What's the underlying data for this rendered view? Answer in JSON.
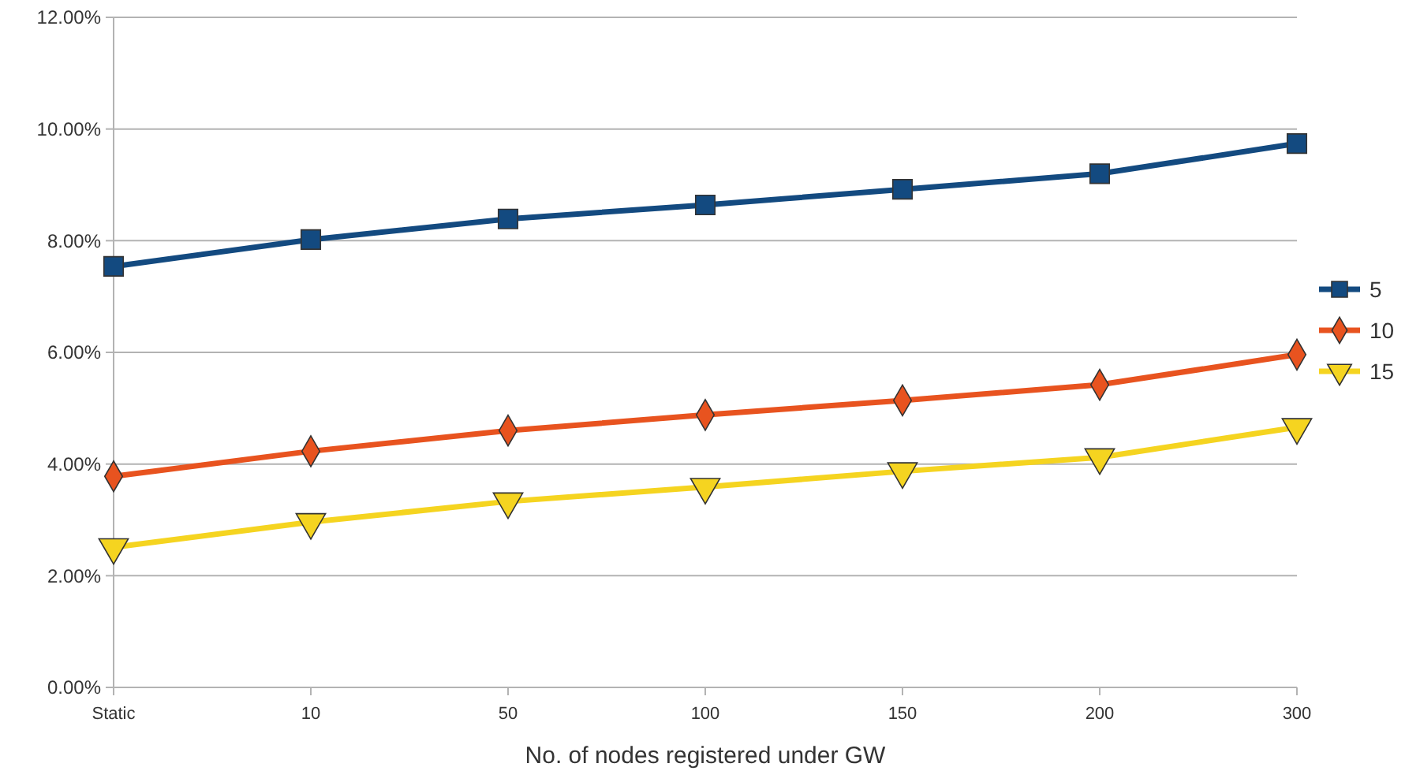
{
  "chart_data": {
    "type": "line",
    "xlabel": "No. of  nodes registered under GW",
    "categories": [
      "Static",
      "10",
      "50",
      "100",
      "150",
      "200",
      "300"
    ],
    "ylim": [
      0,
      12
    ],
    "yticks": [
      {
        "value": 0,
        "label": "0.00%"
      },
      {
        "value": 2,
        "label": "2.00%"
      },
      {
        "value": 4,
        "label": "4.00%"
      },
      {
        "value": 6,
        "label": "6.00%"
      },
      {
        "value": 8,
        "label": "8.00%"
      },
      {
        "value": 10,
        "label": "10.00%"
      },
      {
        "value": 12,
        "label": "12.00%"
      }
    ],
    "grid": "y",
    "legend": "right",
    "line_style": "solid",
    "series": [
      {
        "name": "5",
        "color": "#134a80",
        "marker": "square",
        "values": [
          7.54,
          8.02,
          8.39,
          8.64,
          8.92,
          9.2,
          9.74
        ]
      },
      {
        "name": "10",
        "color": "#e8531f",
        "marker": "diamond",
        "values": [
          3.78,
          4.23,
          4.6,
          4.88,
          5.14,
          5.42,
          5.96
        ]
      },
      {
        "name": "15",
        "color": "#f5d420",
        "marker": "triangle",
        "values": [
          2.51,
          2.96,
          3.33,
          3.59,
          3.87,
          4.12,
          4.66
        ]
      }
    ]
  }
}
